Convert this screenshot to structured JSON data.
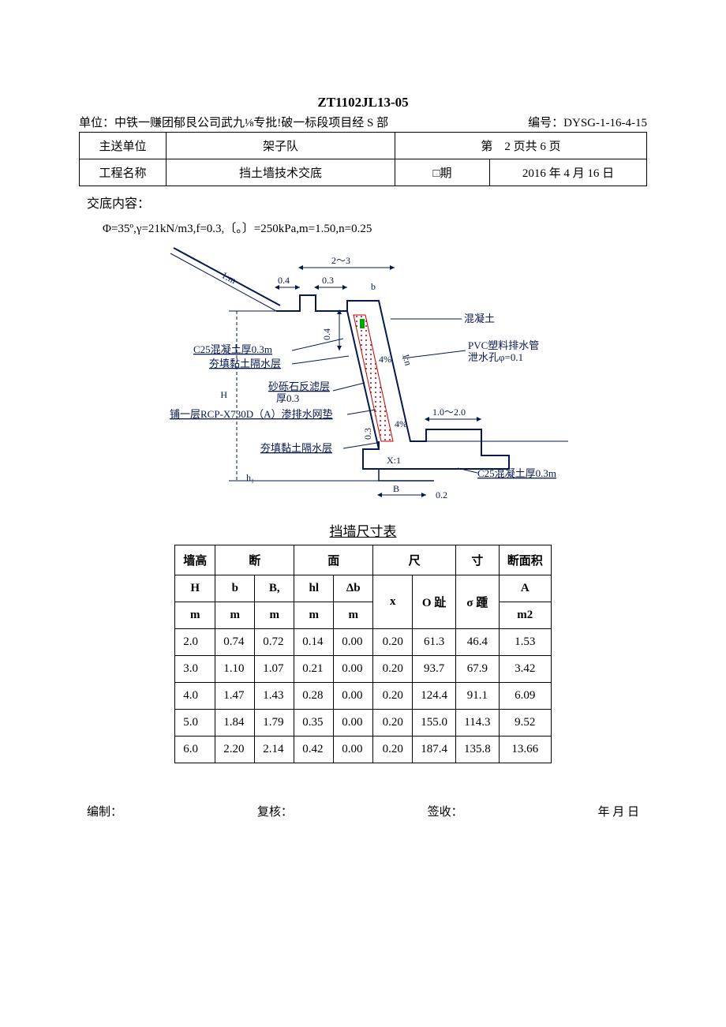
{
  "doc_code": "ZT1102JL13-05",
  "header": {
    "unit_label": "单位：",
    "unit_value": "中铁一赚团郁艮公司武九⅛专批!破一标段项目经 S 部",
    "code_label": "编号：",
    "code_value": "DYSG-1-16-4-15"
  },
  "info_table": {
    "r1c1": "主送单位",
    "r1c2": "架子队",
    "r1c3": "第　2 页共 6 页",
    "r2c1": "工程名称",
    "r2c2": "挡土墙技术交底",
    "r2c3": "□期",
    "r2c4": "2016 年 4 月 16 日"
  },
  "content_heading": "交底内容：",
  "params": "Φ=35º,γ=21kN/m3,f=0.3,〔。〕=250kPa,m=1.50,n=0.25",
  "diagram": {
    "colors": {
      "line": "#06184f",
      "dash": "#06184f",
      "hatch_red": "#c00000",
      "hatch_green": "#00a000",
      "text": "#06184f"
    },
    "dims": {
      "top_span": "2～3",
      "seg04": "0.4",
      "seg03a": "0.3",
      "seg_b": "b",
      "vert04": "0.4",
      "slope_1m": "1:m",
      "slope_1n": "1:n",
      "pct4a": "4%",
      "pct4b": "4%",
      "bot_range": "1.0～2.0",
      "bot_03": "0.3",
      "B": "B",
      "X1": "X:1",
      "h1": "h₁",
      "H": "H",
      "h": "h",
      "vb": "0.2"
    },
    "labels": {
      "concrete": "混凝土",
      "c25_top": "C25混凝土厚0.3m",
      "clay_top": "夯填黏土隔水层",
      "gravel": "砂砾石反滤层",
      "gravel_thk": "厚0.3",
      "rcp": "铺一层RCP-X730D（A）渗排水网垫",
      "pvc": "PVC塑料排水管",
      "weep": "泄水孔φ=0.1",
      "clay_bot": "夯填黏土隔水层",
      "c25_bot": "C25混凝土厚0.3m"
    }
  },
  "dim_table": {
    "title": "挡墙尺寸表",
    "head_group": {
      "wall_h": "墙高",
      "section": "断",
      "face": "面",
      "size": "尺",
      "cun": "寸",
      "area": "断面积"
    },
    "head_sym": {
      "H": "H",
      "b": "b",
      "Bc": "B,",
      "hl": "hl",
      "db": "Δb",
      "x": "x",
      "Otoe": "O 趾",
      "sigma": "σ 踵",
      "A": "A"
    },
    "head_unit": {
      "m": "m",
      "m2": "m2"
    },
    "rows": [
      [
        "2.0",
        "0.74",
        "0.72",
        "0.14",
        "0.00",
        "0.20",
        "61.3",
        "46.4",
        "1.53"
      ],
      [
        "3.0",
        "1.10",
        "1.07",
        "0.21",
        "0.00",
        "0.20",
        "93.7",
        "67.9",
        "3.42"
      ],
      [
        "4.0",
        "1.47",
        "1.43",
        "0.28",
        "0.00",
        "0.20",
        "124.4",
        "91.1",
        "6.09"
      ],
      [
        "5.0",
        "1.84",
        "1.79",
        "0.35",
        "0.00",
        "0.20",
        "155.0",
        "114.3",
        "9.52"
      ],
      [
        "6.0",
        "2.20",
        "2.14",
        "0.42",
        "0.00",
        "0.20",
        "187.4",
        "135.8",
        "13.66"
      ]
    ]
  },
  "footer": {
    "compose": "编制：",
    "review": "复核：",
    "sign": "签收：",
    "date": "年 月 日"
  }
}
